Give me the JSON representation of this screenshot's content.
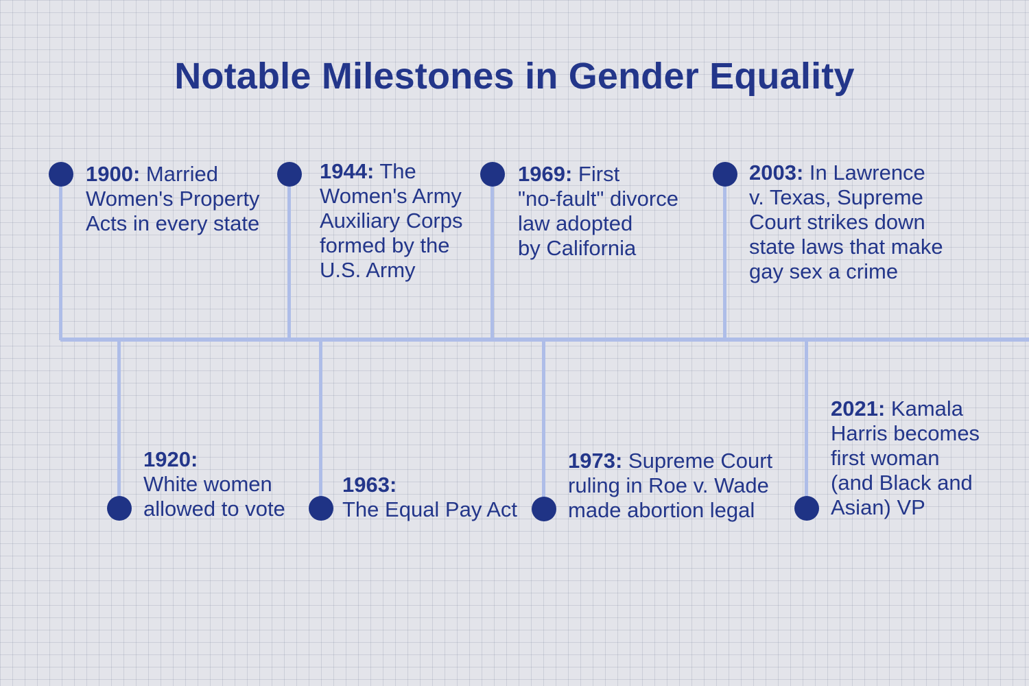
{
  "title": "Notable Milestones in Gender Equality",
  "colors": {
    "background": "#e3e4ea",
    "grid": "#c5c9d6",
    "line": "#aebde8",
    "accent": "#1f3385",
    "text": "#23368a"
  },
  "milestones_top": [
    {
      "year": "1900:",
      "lines": [
        "Married",
        "Women's Property",
        "Acts in every state"
      ]
    },
    {
      "year": "1944:",
      "lines": [
        "The",
        "Women's Army",
        "Auxiliary Corps",
        "formed by the",
        "U.S. Army"
      ]
    },
    {
      "year": "1969:",
      "lines": [
        "First",
        "\"no-fault\" divorce",
        "law adopted",
        "by California"
      ]
    },
    {
      "year": "2003:",
      "lines": [
        "In Lawrence",
        "v. Texas, Supreme",
        "Court strikes down",
        "state laws that make",
        "gay sex a crime"
      ]
    }
  ],
  "milestones_bottom": [
    {
      "year": "1920:",
      "lines": [
        "",
        "White women",
        "allowed to vote"
      ]
    },
    {
      "year": "1963:",
      "lines": [
        "",
        "The Equal Pay Act"
      ]
    },
    {
      "year": "1973:",
      "lines": [
        "Supreme Court",
        "ruling in Roe v. Wade",
        "made abortion legal"
      ]
    },
    {
      "year": "2021:",
      "lines": [
        "Kamala",
        "Harris becomes",
        "first woman",
        "(and Black and",
        "Asian) VP"
      ]
    }
  ]
}
